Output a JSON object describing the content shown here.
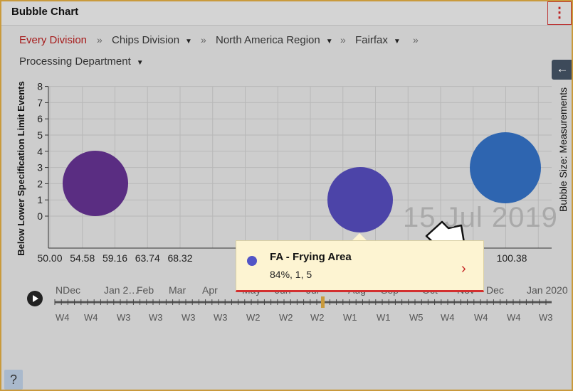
{
  "title": "Bubble Chart",
  "menu_icon": "kebab-menu-icon",
  "breadcrumbs": [
    {
      "label": "Every Division",
      "dropdown": false
    },
    {
      "label": "Chips Division",
      "dropdown": true
    },
    {
      "label": "North America Region",
      "dropdown": true
    },
    {
      "label": "Fairfax",
      "dropdown": true
    },
    {
      "label": "Processing Department",
      "dropdown": true
    }
  ],
  "breadcrumb_separator": "»",
  "side_panel": {
    "toggle_icon": "arrow-left-icon",
    "label": "Bubble Size: Measurements"
  },
  "watermark": "15 Jul 2019",
  "chart_data": {
    "type": "scatter",
    "xlabel": "",
    "ylabel": "Below Lower Specification Limit Events",
    "x_ticks": [
      "50.00",
      "54.58",
      "59.16",
      "63.74",
      "68.32",
      "100.38"
    ],
    "y_ticks": [
      0,
      1,
      2,
      3,
      4,
      5,
      6,
      7,
      8
    ],
    "ylim": [
      0,
      8
    ],
    "grid": true,
    "bubbles": [
      {
        "x": 54.58,
        "y": 2,
        "size": 4,
        "color": "#5a2d82"
      },
      {
        "x": 84,
        "y": 1,
        "size": 5,
        "color": "#4c44a8"
      },
      {
        "x": 100.38,
        "y": 3,
        "size": 6,
        "color": "#2e65b0"
      }
    ]
  },
  "tooltip": {
    "title": "FA - Frying Area",
    "value": "84%, 1, 5",
    "dot_color": "#5255c7",
    "next_icon": "chevron-right-icon"
  },
  "timeline": {
    "months": [
      "NDec",
      "Jan 2…",
      "Feb",
      "Mar",
      "Apr",
      "May",
      "Jun",
      "Jul",
      "Aug",
      "Sep",
      "Oct",
      "Nov",
      "Dec",
      "Jan 2020"
    ],
    "weeks": [
      "W4",
      "W4",
      "W3",
      "W3",
      "W3",
      "W3",
      "W2",
      "W2",
      "W2",
      "W1",
      "W1",
      "W5",
      "W4",
      "W4",
      "W4",
      "W3"
    ],
    "play_icon": "play-icon"
  },
  "help_label": "?"
}
